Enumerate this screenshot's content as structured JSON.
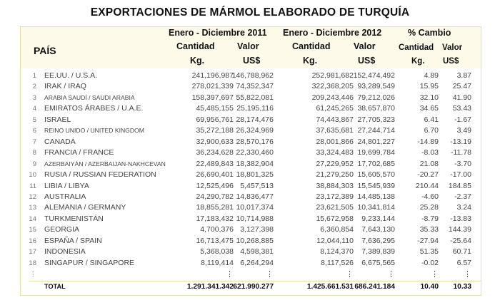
{
  "title": "EXPORTACIONES DE MÁRMOL ELABORADO DE TURQUÍA",
  "header": {
    "pais": "PAÍS",
    "period_2011": "Enero - Diciembre 2011",
    "period_2012": "Enero - Diciembre 2012",
    "pct_change": "% Cambio",
    "cantidad": "Cantidad",
    "valor": "Valor",
    "kg": "Kg.",
    "usd": "US$"
  },
  "rows": [
    {
      "n": "1",
      "country": "EE.UU. / U.S.A.",
      "q11": "241,196,987",
      "v11": "146,788,962",
      "q12": "252,981,682",
      "v12": "152,474,492",
      "pq": "4.89",
      "pv": "3.87"
    },
    {
      "n": "2",
      "country": "IRAK / IRAQ",
      "q11": "278,021,339",
      "v11": "74,352,347",
      "q12": "322,368,205",
      "v12": "93,289,549",
      "pq": "15.95",
      "pv": "25.47"
    },
    {
      "n": "3",
      "country": "ARABIA SAUDÍ / SAUDI ARABIA",
      "q11": "158,397,697",
      "v11": "55,822,081",
      "q12": "209,243,446",
      "v12": "79,212,026",
      "pq": "32.10",
      "pv": "41.90"
    },
    {
      "n": "4",
      "country": "EMIRATOS ÁRABES / U.A.E.",
      "q11": "45,485,155",
      "v11": "25,195,116",
      "q12": "61,245,265",
      "v12": "38,657,870",
      "pq": "34.65",
      "pv": "53.43"
    },
    {
      "n": "5",
      "country": "ISRAEL",
      "q11": "69,956,761",
      "v11": "28,174,476",
      "q12": "74,443,867",
      "v12": "27,705,323",
      "pq": "6.41",
      "pv": "-1.67"
    },
    {
      "n": "6",
      "country": "REINO UNIDO / UNITED KINGDOM",
      "q11": "35,272,188",
      "v11": "26,324,969",
      "q12": "37,635,681",
      "v12": "27,244,714",
      "pq": "6.70",
      "pv": "3.49"
    },
    {
      "n": "7",
      "country": "CANADÁ",
      "q11": "32,900,633",
      "v11": "28,570,176",
      "q12": "28,001,866",
      "v12": "24,801,227",
      "pq": "-14.89",
      "pv": "-13.19"
    },
    {
      "n": "8",
      "country": "FRANCIA / FRANCE",
      "q11": "36,234,628",
      "v11": "22,330,460",
      "q12": "33,324,483",
      "v12": "19,699,784",
      "pq": "-8.03",
      "pv": "-11.78"
    },
    {
      "n": "9",
      "country": "AZERBAIYÁN / AZERBAIJAN-NAKHCEVAN",
      "q11": "22,489,843",
      "v11": "18,382,904",
      "q12": "27,229,952",
      "v12": "17,702,685",
      "pq": "21.08",
      "pv": "-3.70"
    },
    {
      "n": "10",
      "country": "RUSIA / RUSSIAN FEDERATION",
      "q11": "26,690,401",
      "v11": "18,801,325",
      "q12": "21,279,250",
      "v12": "15,605,570",
      "pq": "-20.27",
      "pv": "-17.00"
    },
    {
      "n": "11",
      "country": "LIBIA / LIBYA",
      "q11": "12,525,496",
      "v11": "5,457,513",
      "q12": "38,884,303",
      "v12": "15,545,939",
      "pq": "210.44",
      "pv": "184.85"
    },
    {
      "n": "12",
      "country": "AUSTRALIA",
      "q11": "24,290,782",
      "v11": "14,836,477",
      "q12": "23,172,389",
      "v12": "14,485,138",
      "pq": "-4.60",
      "pv": "-2.37"
    },
    {
      "n": "13",
      "country": "ALEMANIA / GERMANY",
      "q11": "18,855,281",
      "v11": "10,017,374",
      "q12": "23,621,505",
      "v12": "10,341,814",
      "pq": "25.28",
      "pv": "3.24"
    },
    {
      "n": "14",
      "country": "TURKMENISTÁN",
      "q11": "17,183,432",
      "v11": "10,714,988",
      "q12": "15,672,958",
      "v12": "9,233,144",
      "pq": "-8.79",
      "pv": "-13.83"
    },
    {
      "n": "15",
      "country": "GEORGIA",
      "q11": "4,700,376",
      "v11": "3,127,398",
      "q12": "6,360,854",
      "v12": "7,643,130",
      "pq": "35.33",
      "pv": "144.39"
    },
    {
      "n": "16",
      "country": "ESPAÑA / SPAIN",
      "q11": "16,713,475",
      "v11": "10,268,885",
      "q12": "12,044,110",
      "v12": "7,636,295",
      "pq": "-27.94",
      "pv": "-25.64"
    },
    {
      "n": "17",
      "country": "INDONESIA",
      "q11": "5,368,038",
      "v11": "4,598,381",
      "q12": "8,124,370",
      "v12": "7,389,839",
      "pq": "51.35",
      "pv": "60.71"
    },
    {
      "n": "18",
      "country": "SINGAPUR / SINGAPORE",
      "q11": "8,119,414",
      "v11": "6,264,294",
      "q12": "8,117,526",
      "v12": "6,675,565",
      "pq": "-0.02",
      "pv": "6.57"
    }
  ],
  "ellipsis": "⋮",
  "total": {
    "label": "TOTAL",
    "q11": "1.291.341.342",
    "v11": "621.990.277",
    "q12": "1.425.661.531",
    "v12": "686.241.184",
    "pq": "10.40",
    "pv": "10.33"
  }
}
